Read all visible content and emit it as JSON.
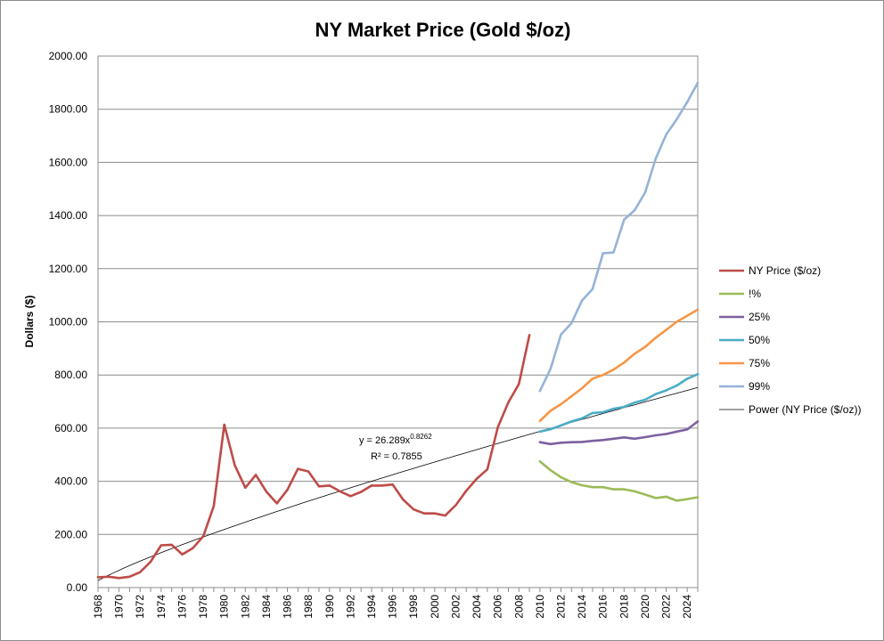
{
  "chart_data": {
    "type": "line",
    "title": "NY Market Price (Gold $/oz)",
    "xlabel": "",
    "ylabel": "Dollars ($)",
    "xlim": [
      1968,
      2025
    ],
    "ylim": [
      0,
      2000
    ],
    "y_ticks": [
      "0.00",
      "200.00",
      "400.00",
      "600.00",
      "800.00",
      "1000.00",
      "1200.00",
      "1400.00",
      "1600.00",
      "1800.00",
      "2000.00"
    ],
    "x_ticks": [
      "1968",
      "1970",
      "1972",
      "1974",
      "1976",
      "1978",
      "1980",
      "1982",
      "1984",
      "1986",
      "1988",
      "1990",
      "1992",
      "1994",
      "1996",
      "1998",
      "2000",
      "2002",
      "2004",
      "2006",
      "2008",
      "2010",
      "2012",
      "2014",
      "2016",
      "2018",
      "2020",
      "2022",
      "2024"
    ],
    "grid": "horizontal",
    "legend_position": "right",
    "series": [
      {
        "name": "NY Price ($/oz)",
        "color": "#be4b48",
        "x": [
          1968,
          1969,
          1970,
          1971,
          1972,
          1973,
          1974,
          1975,
          1976,
          1977,
          1978,
          1979,
          1980,
          1981,
          1982,
          1983,
          1984,
          1985,
          1986,
          1987,
          1988,
          1989,
          1990,
          1991,
          1992,
          1993,
          1994,
          1995,
          1996,
          1997,
          1998,
          1999,
          2000,
          2001,
          2002,
          2003,
          2004,
          2005,
          2006,
          2007,
          2008,
          2009
        ],
        "values": [
          39,
          41,
          36,
          41,
          58,
          97,
          159,
          161,
          125,
          148,
          193,
          307,
          613,
          460,
          376,
          424,
          361,
          317,
          368,
          447,
          437,
          381,
          384,
          362,
          344,
          360,
          384,
          384,
          388,
          331,
          294,
          279,
          279,
          271,
          310,
          364,
          410,
          445,
          604,
          697,
          766,
          950
        ]
      },
      {
        "name": "!%",
        "color": "#9bbb59",
        "x": [
          2010,
          2011,
          2012,
          2013,
          2014,
          2015,
          2016,
          2017,
          2018,
          2019,
          2020,
          2021,
          2022,
          2023,
          2024,
          2025
        ],
        "values": [
          475,
          442,
          415,
          397,
          385,
          378,
          378,
          370,
          370,
          362,
          350,
          337,
          342,
          327,
          333,
          340
        ]
      },
      {
        "name": "25%",
        "color": "#7d60a0",
        "x": [
          2010,
          2011,
          2012,
          2013,
          2014,
          2015,
          2016,
          2017,
          2018,
          2019,
          2020,
          2021,
          2022,
          2023,
          2024,
          2025
        ],
        "values": [
          547,
          540,
          545,
          547,
          548,
          552,
          555,
          560,
          565,
          560,
          566,
          573,
          578,
          587,
          595,
          625
        ]
      },
      {
        "name": "50%",
        "color": "#4bacc6",
        "x": [
          2010,
          2011,
          2012,
          2013,
          2014,
          2015,
          2016,
          2017,
          2018,
          2019,
          2020,
          2021,
          2022,
          2023,
          2024,
          2025
        ],
        "values": [
          587,
          596,
          610,
          625,
          637,
          657,
          660,
          673,
          680,
          696,
          707,
          728,
          742,
          760,
          786,
          803
        ]
      },
      {
        "name": "75%",
        "color": "#f79646",
        "x": [
          2010,
          2011,
          2012,
          2013,
          2014,
          2015,
          2016,
          2017,
          2018,
          2019,
          2020,
          2021,
          2022,
          2023,
          2024,
          2025
        ],
        "values": [
          627,
          665,
          690,
          720,
          750,
          786,
          800,
          820,
          847,
          880,
          906,
          940,
          970,
          1000,
          1023,
          1046
        ]
      },
      {
        "name": "99%",
        "color": "#95b3d7",
        "x": [
          2010,
          2011,
          2012,
          2013,
          2014,
          2015,
          2016,
          2017,
          2018,
          2019,
          2020,
          2021,
          2022,
          2023,
          2024,
          2025
        ],
        "values": [
          740,
          822,
          952,
          995,
          1080,
          1123,
          1258,
          1261,
          1385,
          1420,
          1487,
          1614,
          1705,
          1762,
          1827,
          1900
        ]
      }
    ],
    "trendline": {
      "name": "Power (NY Price ($/oz))",
      "color": "#000000",
      "type": "power",
      "coefficient": 26.289,
      "exponent": 0.8262,
      "equation_text": "y = 26.289x",
      "exponent_text": "0.8262",
      "r_squared_text": "R² = 0.7855"
    }
  }
}
